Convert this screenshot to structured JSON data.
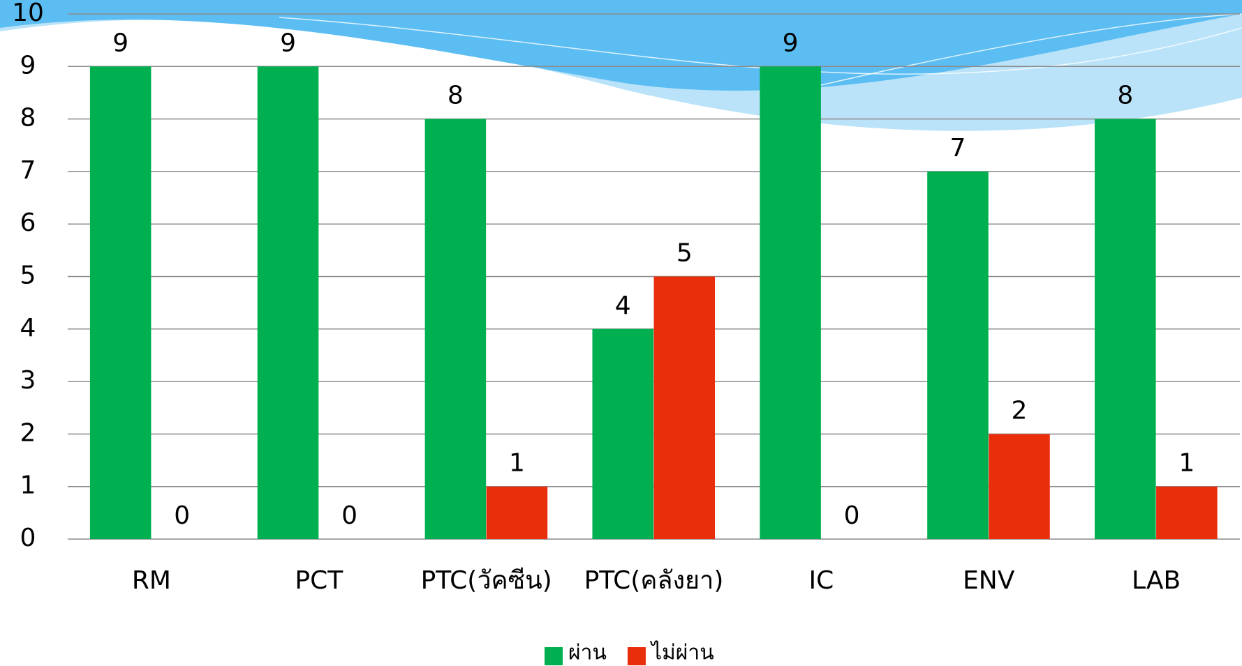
{
  "chart_data": {
    "type": "bar",
    "categories": [
      "RM",
      "PCT",
      "PTC(วัคซีน)",
      "PTC(คลังยา)",
      "IC",
      "ENV",
      "LAB"
    ],
    "series": [
      {
        "name": "ผ่าน",
        "color": "#00b050",
        "values": [
          9,
          9,
          8,
          4,
          9,
          7,
          8
        ]
      },
      {
        "name": "ไม่ผ่าน",
        "color": "#e92e0c",
        "values": [
          0,
          0,
          1,
          5,
          0,
          2,
          1
        ]
      }
    ],
    "ylim": [
      0,
      10
    ],
    "yticks": [
      0,
      1,
      2,
      3,
      4,
      5,
      6,
      7,
      8,
      9,
      10
    ],
    "grid": true,
    "legend": "bottom"
  }
}
